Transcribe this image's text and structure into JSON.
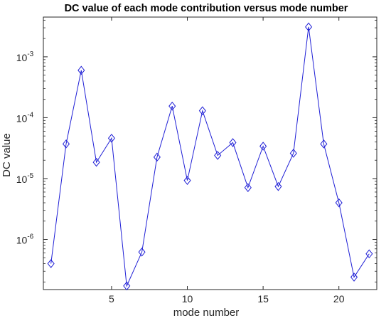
{
  "chart_data": {
    "type": "line",
    "title": "DC value of each mode contribution versus mode number",
    "xlabel": "mode number",
    "ylabel": "DC value",
    "xlim": [
      0.5,
      22.5
    ],
    "ylim": [
      1.5e-07,
      0.0045
    ],
    "yscale": "log",
    "grid": false,
    "legend": "none",
    "x_ticks": [
      {
        "value": 5,
        "label": "5"
      },
      {
        "value": 10,
        "label": "10"
      },
      {
        "value": 15,
        "label": "15"
      },
      {
        "value": 20,
        "label": "20"
      }
    ],
    "y_ticks": [
      {
        "value": 1e-06,
        "base": "10",
        "exp": "-6"
      },
      {
        "value": 1e-05,
        "base": "10",
        "exp": "-5"
      },
      {
        "value": 0.0001,
        "base": "10",
        "exp": "-4"
      },
      {
        "value": 0.001,
        "base": "10",
        "exp": "-3"
      }
    ],
    "series": [
      {
        "color": "#1f1fd6",
        "marker": "diamond",
        "x": [
          1,
          2,
          3,
          4,
          5,
          6,
          7,
          8,
          9,
          10,
          11,
          12,
          13,
          14,
          15,
          16,
          17,
          18,
          19,
          20,
          21,
          22
        ],
        "values": [
          4e-07,
          3.7e-05,
          0.0006,
          1.85e-05,
          4.6e-05,
          1.72e-07,
          6.2e-07,
          2.25e-05,
          0.000155,
          9.3e-06,
          0.00013,
          2.4e-05,
          3.9e-05,
          7.1e-06,
          3.4e-05,
          7.4e-06,
          2.6e-05,
          0.0031,
          3.7e-05,
          4e-06,
          2.4e-07,
          5.8e-07
        ]
      }
    ]
  }
}
